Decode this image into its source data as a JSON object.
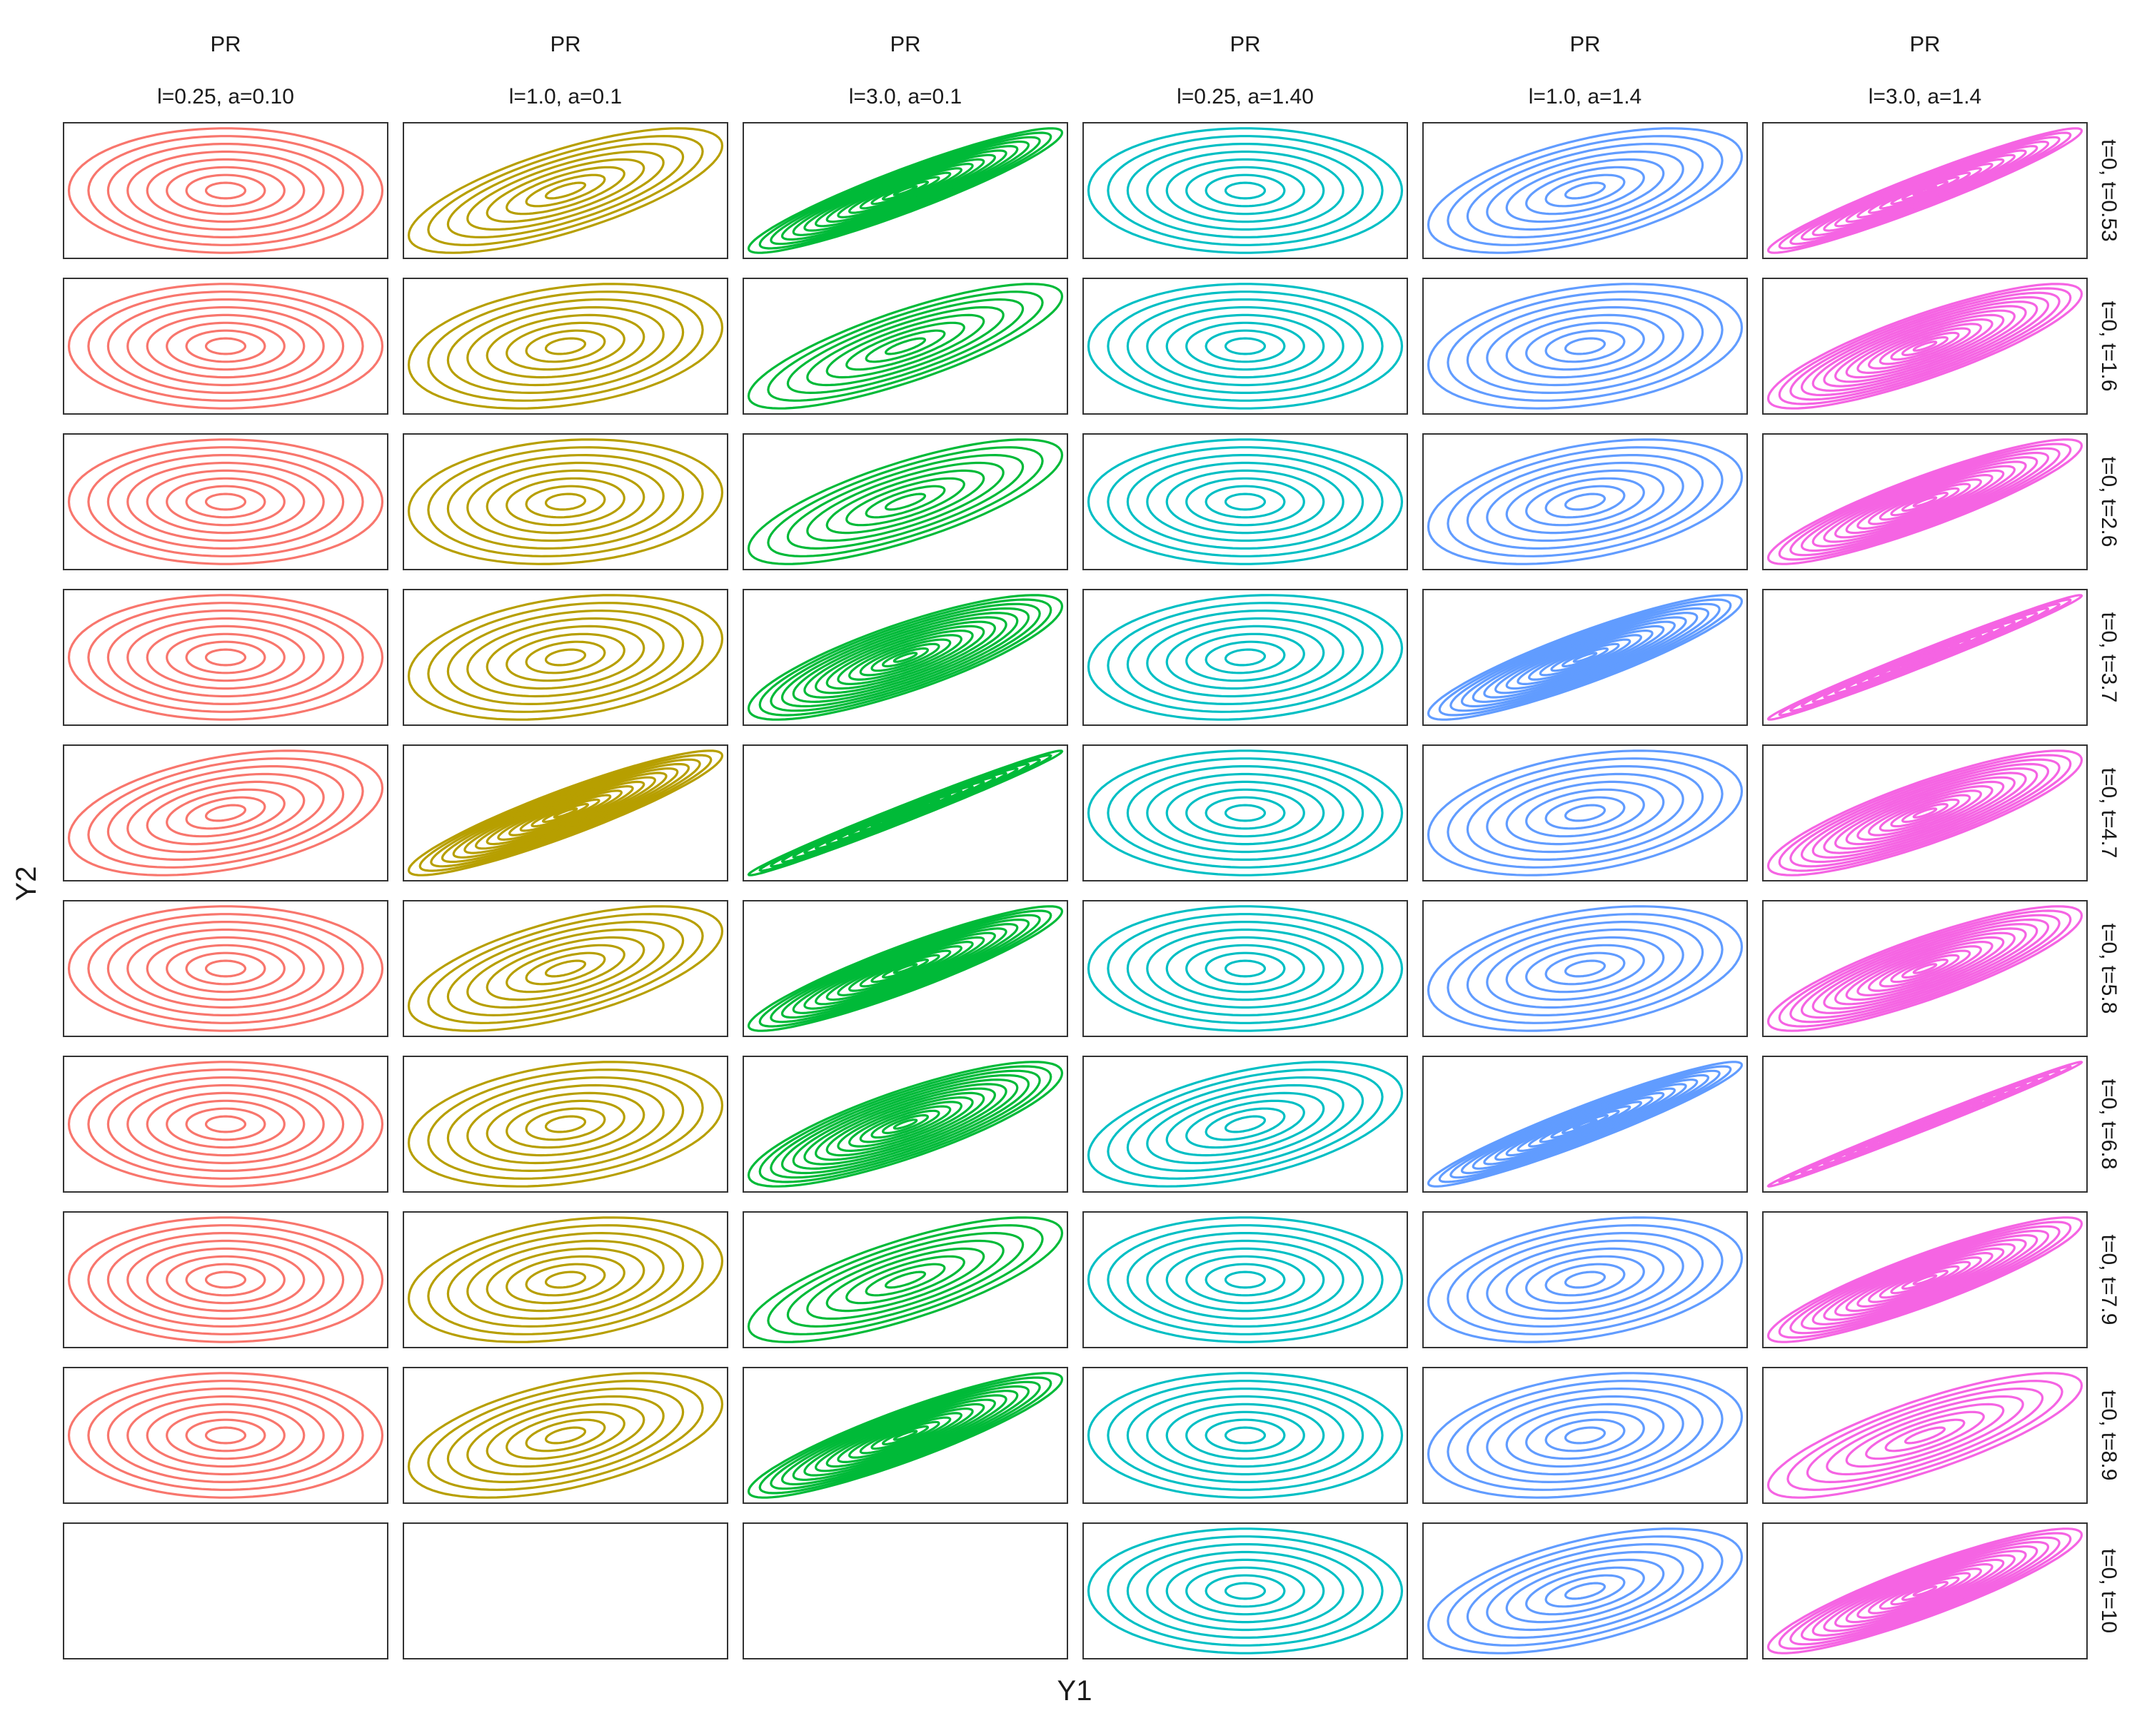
{
  "chart_data": {
    "type": "contour",
    "xlabel": "Y1",
    "ylabel": "Y2",
    "columns": [
      {
        "title": "PR",
        "subtitle": "l=0.25, a=0.10",
        "color": "#F8766D"
      },
      {
        "title": "PR",
        "subtitle": "l=1.0, a=0.1",
        "color": "#B79F00"
      },
      {
        "title": "PR",
        "subtitle": "l=3.0, a=0.1",
        "color": "#00BA38"
      },
      {
        "title": "PR",
        "subtitle": "l=0.25, a=1.40",
        "color": "#00BFC4"
      },
      {
        "title": "PR",
        "subtitle": "l=1.0, a=1.4",
        "color": "#619CFF"
      },
      {
        "title": "PR",
        "subtitle": "l=3.0, a=1.4",
        "color": "#F564E3"
      }
    ],
    "rows": [
      "t=0, t=0.53",
      "t=0, t=1.6",
      "t=0, t=2.6",
      "t=0, t=3.7",
      "t=0, t=4.7",
      "t=0, t=5.8",
      "t=0, t=6.8",
      "t=0, t=7.9",
      "t=0, t=8.9",
      "t=0, t=10"
    ],
    "ellipse_count": 8,
    "correlations": [
      [
        0.0,
        0.72,
        0.93,
        0.0,
        0.55,
        0.96
      ],
      [
        0.0,
        0.3,
        0.8,
        0.0,
        0.3,
        0.84
      ],
      [
        0.0,
        0.15,
        0.75,
        0.0,
        0.4,
        0.9
      ],
      [
        0.0,
        0.3,
        0.82,
        0.15,
        0.9,
        0.99
      ],
      [
        0.4,
        0.92,
        0.99,
        0.0,
        0.35,
        0.85
      ],
      [
        0.0,
        0.6,
        0.92,
        0.0,
        0.35,
        0.85
      ],
      [
        0.0,
        0.3,
        0.82,
        0.5,
        0.95,
        0.995
      ],
      [
        0.0,
        0.3,
        0.75,
        0.0,
        0.35,
        0.9
      ],
      [
        0.0,
        0.5,
        0.9,
        0.0,
        0.3,
        0.8
      ],
      [
        null,
        null,
        null,
        0.0,
        0.55,
        0.9
      ]
    ]
  }
}
